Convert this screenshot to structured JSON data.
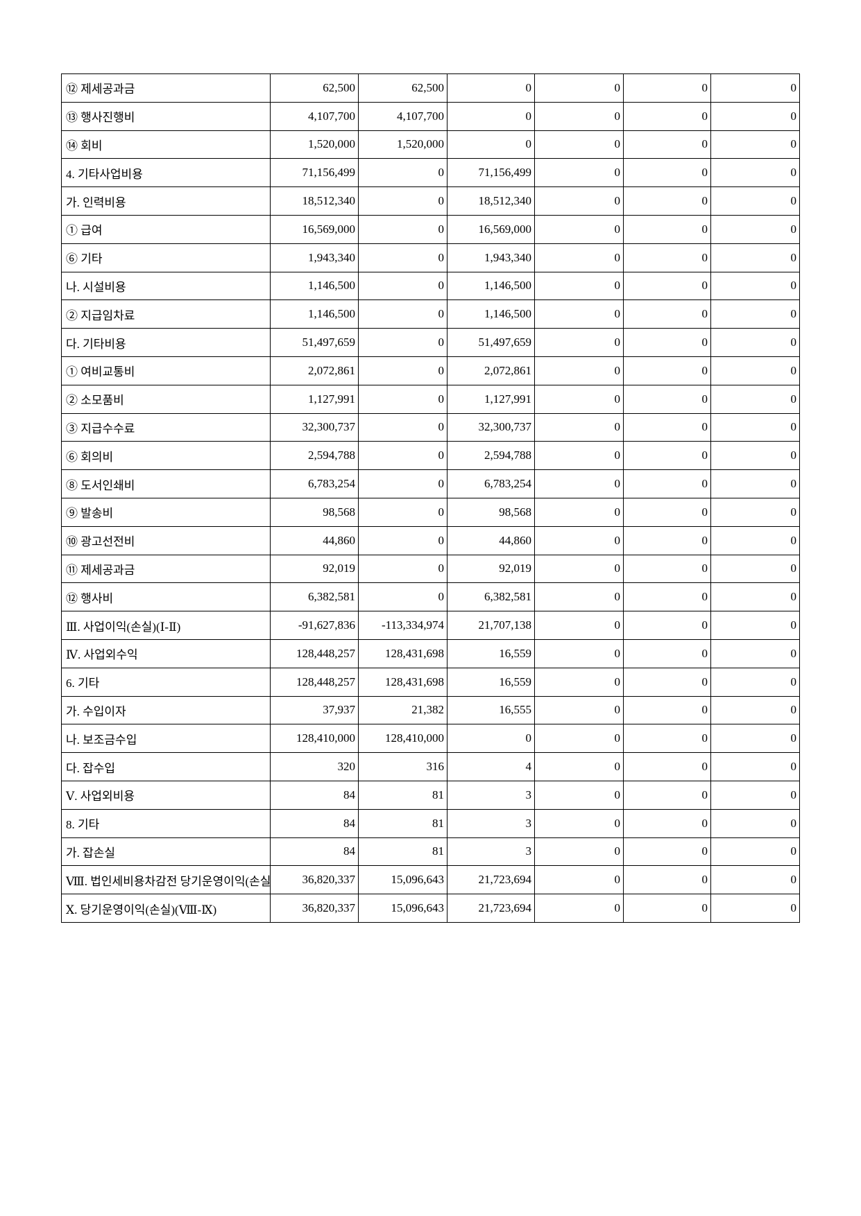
{
  "rows": [
    {
      "label": "⑫ 제세공과금",
      "values": [
        "62,500",
        "62,500",
        "0",
        "0",
        "0",
        "0"
      ]
    },
    {
      "label": "⑬ 행사진행비",
      "values": [
        "4,107,700",
        "4,107,700",
        "0",
        "0",
        "0",
        "0"
      ]
    },
    {
      "label": "⑭ 회비",
      "values": [
        "1,520,000",
        "1,520,000",
        "0",
        "0",
        "0",
        "0"
      ]
    },
    {
      "label": "4. 기타사업비용",
      "values": [
        "71,156,499",
        "0",
        "71,156,499",
        "0",
        "0",
        "0"
      ]
    },
    {
      "label": "가. 인력비용",
      "values": [
        "18,512,340",
        "0",
        "18,512,340",
        "0",
        "0",
        "0"
      ]
    },
    {
      "label": "① 급여",
      "values": [
        "16,569,000",
        "0",
        "16,569,000",
        "0",
        "0",
        "0"
      ]
    },
    {
      "label": "⑥ 기타",
      "values": [
        "1,943,340",
        "0",
        "1,943,340",
        "0",
        "0",
        "0"
      ]
    },
    {
      "label": "나. 시설비용",
      "values": [
        "1,146,500",
        "0",
        "1,146,500",
        "0",
        "0",
        "0"
      ]
    },
    {
      "label": "② 지급임차료",
      "values": [
        "1,146,500",
        "0",
        "1,146,500",
        "0",
        "0",
        "0"
      ]
    },
    {
      "label": "다. 기타비용",
      "values": [
        "51,497,659",
        "0",
        "51,497,659",
        "0",
        "0",
        "0"
      ]
    },
    {
      "label": "① 여비교통비",
      "values": [
        "2,072,861",
        "0",
        "2,072,861",
        "0",
        "0",
        "0"
      ]
    },
    {
      "label": "② 소모품비",
      "values": [
        "1,127,991",
        "0",
        "1,127,991",
        "0",
        "0",
        "0"
      ]
    },
    {
      "label": "③ 지급수수료",
      "values": [
        "32,300,737",
        "0",
        "32,300,737",
        "0",
        "0",
        "0"
      ]
    },
    {
      "label": "⑥ 회의비",
      "values": [
        "2,594,788",
        "0",
        "2,594,788",
        "0",
        "0",
        "0"
      ]
    },
    {
      "label": "⑧ 도서인쇄비",
      "values": [
        "6,783,254",
        "0",
        "6,783,254",
        "0",
        "0",
        "0"
      ]
    },
    {
      "label": "⑨ 발송비",
      "values": [
        "98,568",
        "0",
        "98,568",
        "0",
        "0",
        "0"
      ]
    },
    {
      "label": "⑩ 광고선전비",
      "values": [
        "44,860",
        "0",
        "44,860",
        "0",
        "0",
        "0"
      ]
    },
    {
      "label": "⑪ 제세공과금",
      "values": [
        "92,019",
        "0",
        "92,019",
        "0",
        "0",
        "0"
      ]
    },
    {
      "label": "⑫ 행사비",
      "values": [
        "6,382,581",
        "0",
        "6,382,581",
        "0",
        "0",
        "0"
      ]
    },
    {
      "label": "Ⅲ. 사업이익(손실)(Ⅰ-Ⅱ)",
      "values": [
        "-91,627,836",
        "-113,334,974",
        "21,707,138",
        "0",
        "0",
        "0"
      ]
    },
    {
      "label": "Ⅳ. 사업외수익",
      "values": [
        "128,448,257",
        "128,431,698",
        "16,559",
        "0",
        "0",
        "0"
      ]
    },
    {
      "label": "6. 기타",
      "values": [
        "128,448,257",
        "128,431,698",
        "16,559",
        "0",
        "0",
        "0"
      ]
    },
    {
      "label": "가. 수입이자",
      "values": [
        "37,937",
        "21,382",
        "16,555",
        "0",
        "0",
        "0"
      ]
    },
    {
      "label": "나. 보조금수입",
      "values": [
        "128,410,000",
        "128,410,000",
        "0",
        "0",
        "0",
        "0"
      ]
    },
    {
      "label": "다. 잡수입",
      "values": [
        "320",
        "316",
        "4",
        "0",
        "0",
        "0"
      ]
    },
    {
      "label": "Ⅴ. 사업외비용",
      "values": [
        "84",
        "81",
        "3",
        "0",
        "0",
        "0"
      ]
    },
    {
      "label": "8. 기타",
      "values": [
        "84",
        "81",
        "3",
        "0",
        "0",
        "0"
      ]
    },
    {
      "label": "가. 잡손실",
      "values": [
        "84",
        "81",
        "3",
        "0",
        "0",
        "0"
      ]
    },
    {
      "label": "Ⅷ. 법인세비용차감전 당기운영이익(손실)",
      "values": [
        "36,820,337",
        "15,096,643",
        "21,723,694",
        "0",
        "0",
        "0"
      ]
    },
    {
      "label": "Ⅹ. 당기운영이익(손실)(Ⅷ-Ⅸ)",
      "values": [
        "36,820,337",
        "15,096,643",
        "21,723,694",
        "0",
        "0",
        "0"
      ]
    }
  ]
}
